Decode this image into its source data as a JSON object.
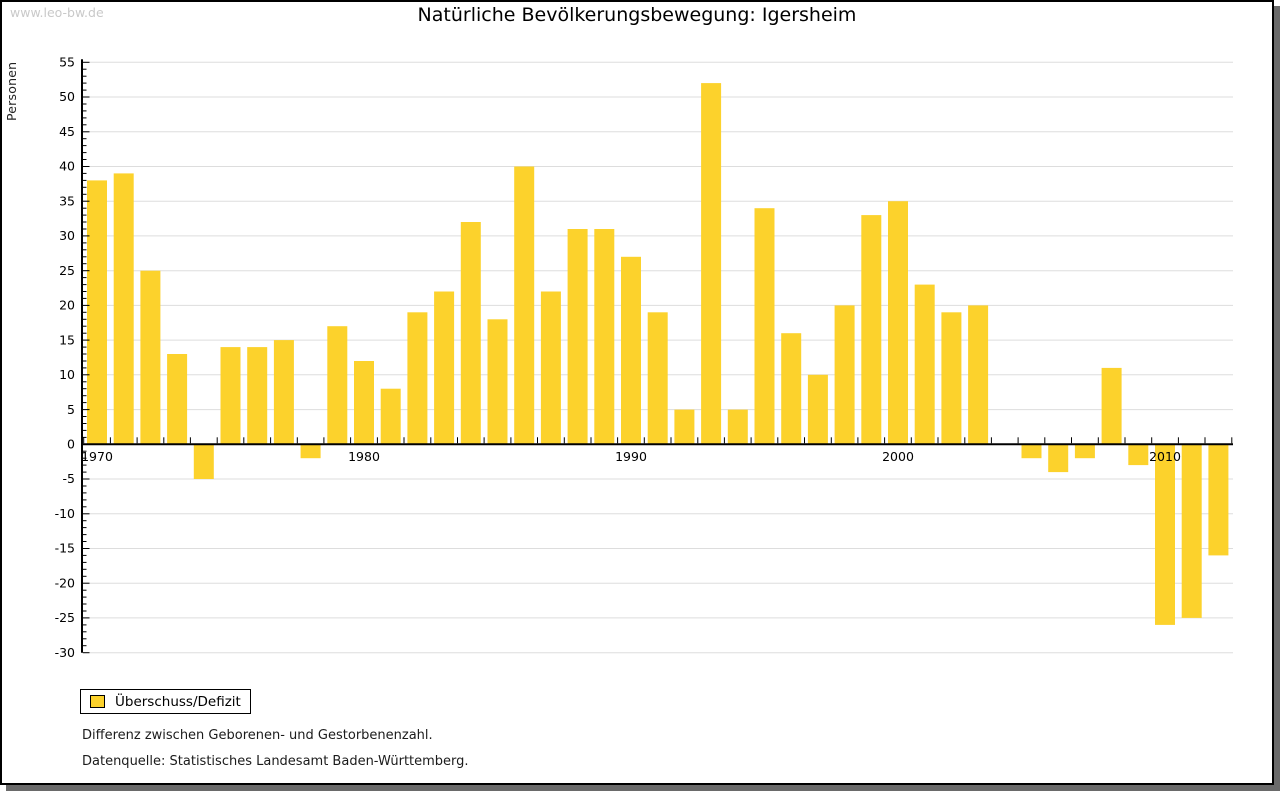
{
  "watermark": "www.leo-bw.de",
  "chart_data": {
    "type": "bar",
    "title": "Natürliche Bevölkerungsbewegung: Igersheim",
    "xlabel": "",
    "ylabel": "Personen",
    "categories": [
      1970,
      1971,
      1972,
      1973,
      1974,
      1975,
      1976,
      1977,
      1978,
      1979,
      1980,
      1981,
      1982,
      1983,
      1984,
      1985,
      1986,
      1987,
      1988,
      1989,
      1990,
      1991,
      1992,
      1993,
      1994,
      1995,
      1996,
      1997,
      1998,
      1999,
      2000,
      2001,
      2002,
      2003,
      2004,
      2005,
      2006,
      2007,
      2008,
      2009,
      2010,
      2011,
      2012
    ],
    "values": [
      38,
      39,
      25,
      13,
      -5,
      14,
      14,
      15,
      -2,
      17,
      12,
      8,
      19,
      22,
      32,
      18,
      40,
      22,
      31,
      31,
      27,
      19,
      5,
      52,
      5,
      34,
      16,
      10,
      20,
      33,
      35,
      23,
      19,
      20,
      0,
      -2,
      -4,
      -2,
      11,
      -3,
      -26,
      -25,
      -16
    ],
    "ylim": [
      -30,
      55
    ],
    "ytick_step": 5,
    "ytick_minor_step": 1,
    "x_axis_labels": [
      1970,
      1980,
      1990,
      2000,
      2010
    ],
    "grid": "horizontal",
    "bar_color": "#FCD22C",
    "gridline_color": "#dddddd",
    "legend": [
      {
        "label": "Überschuss/Defizit",
        "color": "#FCD22C"
      }
    ],
    "legend_position": "bottom-left"
  },
  "footnotes": [
    "Differenz zwischen Geborenen- und Gestorbenenzahl.",
    "Datenquelle: Statistisches Landesamt Baden-Württemberg."
  ]
}
